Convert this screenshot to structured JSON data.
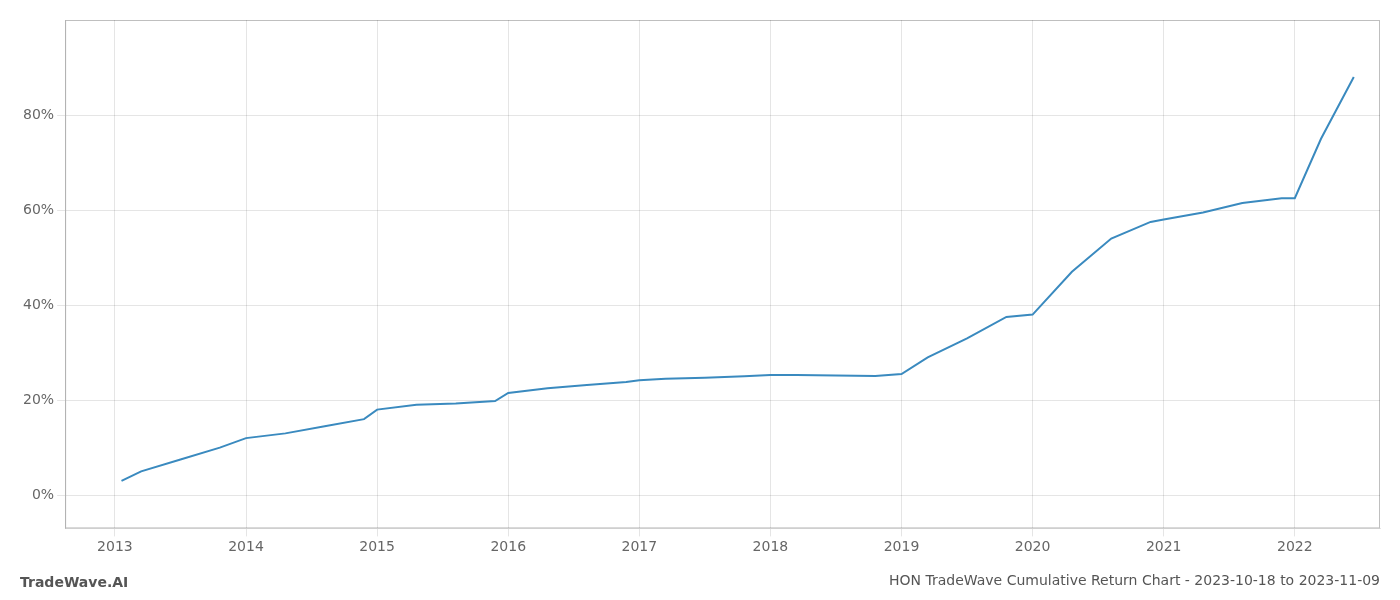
{
  "chart_data": {
    "type": "line",
    "title": "HON TradeWave Cumulative Return Chart - 2023-10-18 to 2023-11-09",
    "annotations": [
      "TradeWave.AI"
    ],
    "color": "#3a8abf",
    "x": [
      2013.05,
      2013.2,
      2013.5,
      2013.8,
      2014.0,
      2014.3,
      2014.6,
      2014.9,
      2015.0,
      2015.3,
      2015.6,
      2015.9,
      2016.0,
      2016.3,
      2016.6,
      2016.9,
      2017.0,
      2017.2,
      2017.5,
      2017.8,
      2018.0,
      2018.2,
      2018.5,
      2018.8,
      2019.0,
      2019.2,
      2019.5,
      2019.8,
      2020.0,
      2020.3,
      2020.6,
      2020.9,
      2021.0,
      2021.3,
      2021.6,
      2021.9,
      2022.0,
      2022.2,
      2022.45
    ],
    "values": [
      3.0,
      5.0,
      7.5,
      10.0,
      12.0,
      13.0,
      14.5,
      16.0,
      18.0,
      19.0,
      19.3,
      19.8,
      21.5,
      22.5,
      23.2,
      23.8,
      24.2,
      24.5,
      24.7,
      25.0,
      25.3,
      25.3,
      25.2,
      25.1,
      25.5,
      29.0,
      33.0,
      37.5,
      38.0,
      47.0,
      54.0,
      57.5,
      58.0,
      59.5,
      61.5,
      62.5,
      62.5,
      75.0,
      88.0
    ],
    "xlim": [
      2012.62,
      2022.65
    ],
    "xticks": [
      2013,
      2014,
      2015,
      2016,
      2017,
      2018,
      2019,
      2020,
      2021,
      2022
    ],
    "ylim": [
      -7,
      100
    ],
    "yticks": [
      {
        "value": 0,
        "label": "0%"
      },
      {
        "value": 20,
        "label": "20%"
      },
      {
        "value": 40,
        "label": "40%"
      },
      {
        "value": 60,
        "label": "60%"
      },
      {
        "value": 80,
        "label": "80%"
      }
    ],
    "grid": true
  }
}
